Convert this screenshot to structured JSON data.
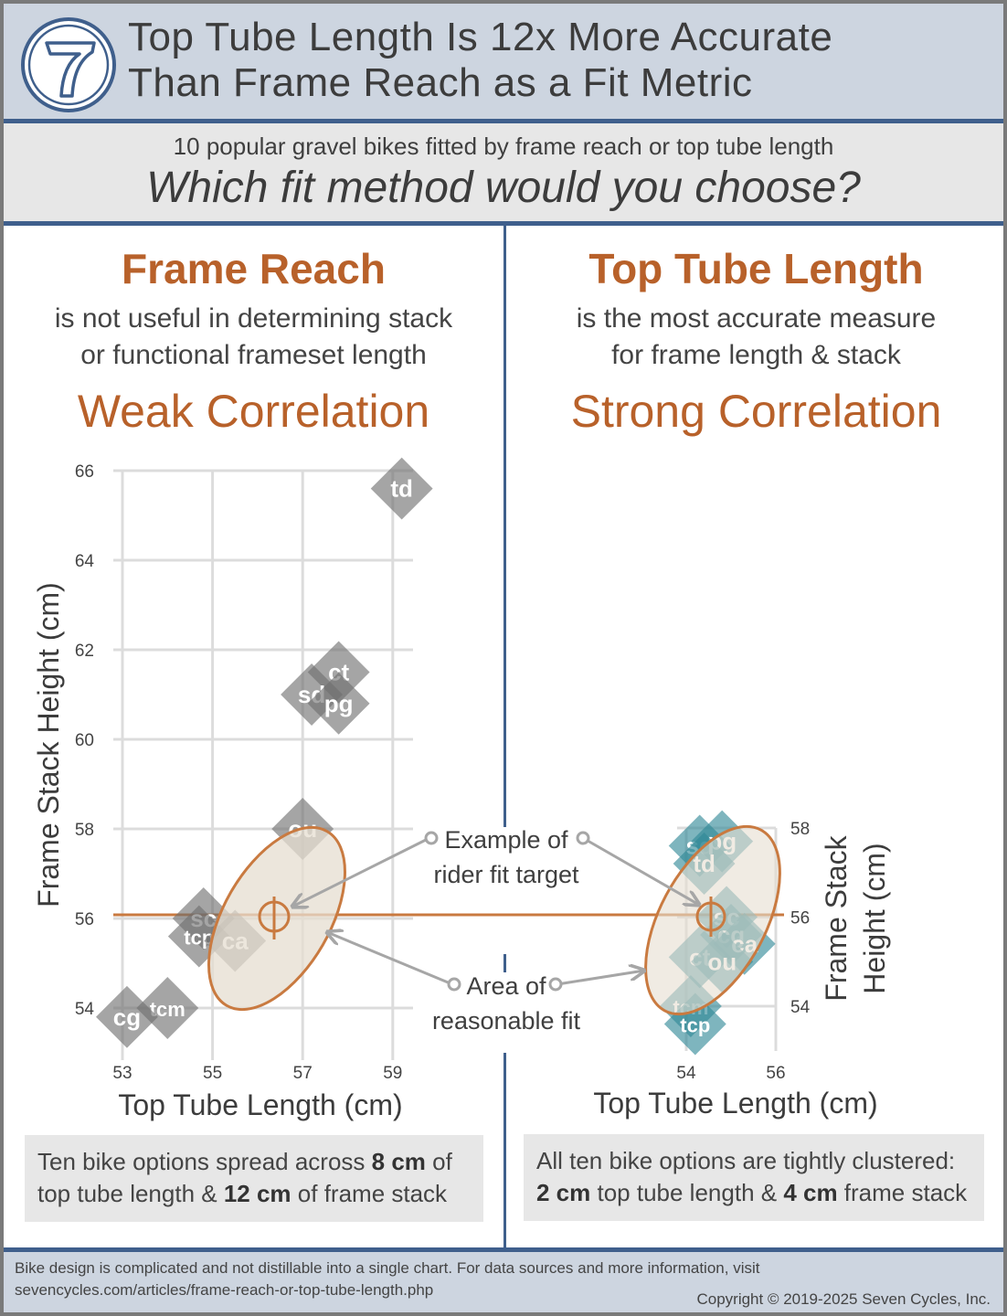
{
  "header": {
    "logo_icon": "seven-cycles-7-logo",
    "title_line1": "Top Tube Length Is 12x More Accurate",
    "title_line2": "Than Frame Reach as a Fit Metric"
  },
  "subheader": {
    "line1": "10 popular gravel bikes fitted by frame reach or top tube length",
    "question": "Which fit method would you choose?"
  },
  "left": {
    "heading": "Frame Reach",
    "desc_line1": "is not useful in determining stack",
    "desc_line2": "or functional frameset length",
    "correlation": "Weak Correlation",
    "note_parts": [
      "Ten bike options spread across ",
      "8 cm",
      " of",
      "top tube length & ",
      "12 cm",
      " of frame stack"
    ]
  },
  "right": {
    "heading": "Top Tube Length",
    "desc_line1": "is the most accurate measure",
    "desc_line2": "for frame length & stack",
    "correlation": "Strong Correlation",
    "note_parts": [
      "All ten bike options are tightly clustered:",
      "2 cm",
      " top tube length & ",
      "4 cm",
      " frame stack"
    ]
  },
  "annotations": {
    "target_line1": "Example of",
    "target_line2": "rider fit target",
    "area_line1": "Area of",
    "area_line2": "reasonable fit"
  },
  "footer": {
    "line1": "Bike design is complicated and not distillable into a single chart.  For data sources and more information, visit",
    "line2": "sevencycles.com/articles/frame-reach-or-top-tube-length.php",
    "copyright": "Copyright © 2019-2025 Seven Cycles, Inc."
  },
  "colors": {
    "accent_orange": "#b8612a",
    "ellipse_stroke": "#c97a40",
    "ellipse_fill": "#e6ddd0",
    "header_blue": "#3f5f8c",
    "header_bg": "#cdd5e0",
    "left_marker": "#6e6e6e",
    "right_marker": "#2e8796"
  },
  "chart_data": [
    {
      "type": "scatter",
      "title": "Frame Reach",
      "xlabel": "Top Tube Length (cm)",
      "ylabel": "Frame Stack Height (cm)",
      "xlim": [
        53,
        59
      ],
      "ylim": [
        54,
        66
      ],
      "xticks": [
        53,
        55,
        57,
        59
      ],
      "yticks": [
        54,
        56,
        58,
        60,
        62,
        64,
        66
      ],
      "grid": true,
      "points": [
        {
          "label": "td",
          "x": 59.2,
          "y": 65.6
        },
        {
          "label": "ct",
          "x": 57.8,
          "y": 61.5
        },
        {
          "label": "sd",
          "x": 57.2,
          "y": 61.0
        },
        {
          "label": "pg",
          "x": 57.8,
          "y": 60.8
        },
        {
          "label": "ou",
          "x": 57.0,
          "y": 58.0
        },
        {
          "label": "sc",
          "x": 54.8,
          "y": 56.0
        },
        {
          "label": "tcp",
          "x": 54.7,
          "y": 55.6
        },
        {
          "label": "ca",
          "x": 55.5,
          "y": 55.5
        },
        {
          "label": "tcm",
          "x": 54.0,
          "y": 54.0
        },
        {
          "label": "cg",
          "x": 53.1,
          "y": 53.8
        }
      ],
      "fit_target": {
        "x": 56.4,
        "y": 56.0
      },
      "annotations": [
        "Example of rider fit target",
        "Area of reasonable fit"
      ]
    },
    {
      "type": "scatter",
      "title": "Top Tube Length",
      "xlabel": "Top Tube Length (cm)",
      "ylabel": "Frame Stack Height (cm)",
      "xlim": [
        54,
        56
      ],
      "ylim": [
        54,
        58
      ],
      "xticks": [
        54,
        56
      ],
      "yticks": [
        54,
        56,
        58
      ],
      "grid": true,
      "points": [
        {
          "label": "sd",
          "x": 54.3,
          "y": 57.6
        },
        {
          "label": "pg",
          "x": 54.8,
          "y": 57.7
        },
        {
          "label": "td",
          "x": 54.4,
          "y": 57.2
        },
        {
          "label": "sc",
          "x": 54.9,
          "y": 56.0
        },
        {
          "label": "cg",
          "x": 55.0,
          "y": 55.6
        },
        {
          "label": "ca",
          "x": 55.3,
          "y": 55.4
        },
        {
          "label": "ct",
          "x": 54.3,
          "y": 55.1
        },
        {
          "label": "ou",
          "x": 54.8,
          "y": 55.0
        },
        {
          "label": "tcm",
          "x": 54.1,
          "y": 54.0
        },
        {
          "label": "tcp",
          "x": 54.2,
          "y": 53.6
        }
      ],
      "fit_target": {
        "x": 54.5,
        "y": 56.0
      }
    }
  ]
}
